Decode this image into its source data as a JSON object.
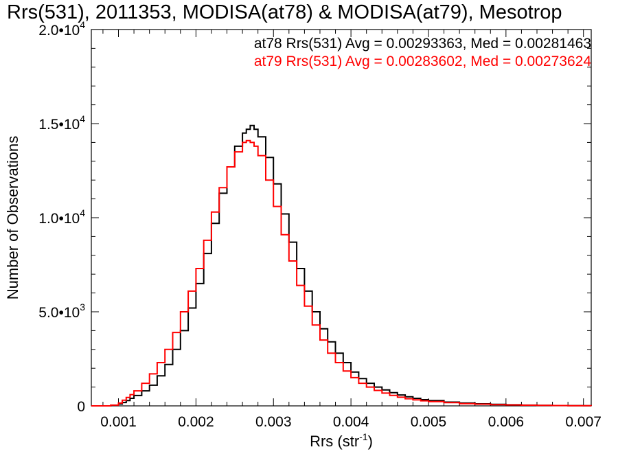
{
  "chart_data": {
    "type": "line",
    "title": "Rrs(531), 2011353, MODISA(at78) & MODISA(at79), Mesotrop",
    "xlabel": "Rrs (str",
    "xlabel_sup": "-1",
    "xlabel_close": ")",
    "ylabel": "Number of Observations",
    "xlim": [
      0.00065,
      0.0071
    ],
    "ylim": [
      0,
      20000
    ],
    "x_ticks": [
      {
        "value": 0.001,
        "label": "0.001"
      },
      {
        "value": 0.002,
        "label": "0.002"
      },
      {
        "value": 0.003,
        "label": "0.003"
      },
      {
        "value": 0.004,
        "label": "0.004"
      },
      {
        "value": 0.005,
        "label": "0.005"
      },
      {
        "value": 0.006,
        "label": "0.006"
      },
      {
        "value": 0.007,
        "label": "0.007"
      }
    ],
    "y_ticks": [
      {
        "value": 0,
        "mant": "0",
        "exp": ""
      },
      {
        "value": 5000,
        "mant": "5.0•1",
        "exp": "3"
      },
      {
        "value": 10000,
        "mant": "1.0•1",
        "exp": "4"
      },
      {
        "value": 15000,
        "mant": "1.5•1",
        "exp": "4"
      },
      {
        "value": 20000,
        "mant": "2.0•1",
        "exp": "4"
      }
    ],
    "series": [
      {
        "name": "at78",
        "color": "#000000",
        "legend": "at78 Rrs(531) Avg = 0.00293363, Med = 0.00281463",
        "x": [
          0.00065,
          0.0008,
          0.0009,
          0.001,
          0.00105,
          0.0011,
          0.00115,
          0.0012,
          0.0013,
          0.0014,
          0.0015,
          0.0016,
          0.0017,
          0.0018,
          0.0019,
          0.002,
          0.0021,
          0.0022,
          0.0023,
          0.0024,
          0.0025,
          0.0026,
          0.00265,
          0.0027,
          0.00275,
          0.0028,
          0.0029,
          0.003,
          0.0031,
          0.0032,
          0.0033,
          0.0034,
          0.0035,
          0.0036,
          0.0037,
          0.0038,
          0.0039,
          0.004,
          0.0041,
          0.0042,
          0.0043,
          0.0044,
          0.0045,
          0.0046,
          0.0047,
          0.0048,
          0.0049,
          0.005,
          0.0052,
          0.0054,
          0.0056,
          0.0058,
          0.006,
          0.0062,
          0.0064,
          0.0066,
          0.0068,
          0.007,
          0.0071
        ],
        "y": [
          0,
          0,
          30,
          100,
          180,
          280,
          400,
          550,
          800,
          1100,
          1600,
          2200,
          3000,
          4000,
          5200,
          6500,
          8100,
          9700,
          11300,
          12700,
          13800,
          14500,
          14700,
          14900,
          14700,
          14300,
          13200,
          11800,
          10200,
          8700,
          7300,
          6100,
          5000,
          4100,
          3400,
          2800,
          2300,
          1800,
          1450,
          1200,
          1000,
          850,
          700,
          580,
          480,
          400,
          330,
          280,
          200,
          150,
          110,
          80,
          60,
          40,
          30,
          20,
          15,
          10,
          5
        ]
      },
      {
        "name": "at79",
        "color": "#ff0000",
        "legend": "at79 Rrs(531) Avg = 0.00283602, Med = 0.00273624",
        "x": [
          0.00065,
          0.0008,
          0.0009,
          0.001,
          0.00105,
          0.0011,
          0.00115,
          0.0012,
          0.0013,
          0.0014,
          0.0015,
          0.0016,
          0.0017,
          0.0018,
          0.0019,
          0.002,
          0.0021,
          0.0022,
          0.0023,
          0.0024,
          0.0025,
          0.0026,
          0.00265,
          0.0027,
          0.00275,
          0.0028,
          0.0029,
          0.003,
          0.0031,
          0.0032,
          0.0033,
          0.0034,
          0.0035,
          0.0036,
          0.0037,
          0.0038,
          0.0039,
          0.004,
          0.0041,
          0.0042,
          0.0043,
          0.0044,
          0.0045,
          0.0046,
          0.0047,
          0.0048,
          0.0049,
          0.005,
          0.0052,
          0.0054,
          0.0056,
          0.0058,
          0.006,
          0.0062,
          0.0064,
          0.0066,
          0.0068,
          0.007,
          0.0071
        ],
        "y": [
          0,
          0,
          40,
          150,
          300,
          450,
          600,
          800,
          1200,
          1700,
          2300,
          3000,
          3900,
          5000,
          6100,
          7300,
          8800,
          10300,
          11600,
          12700,
          13500,
          14000,
          14100,
          14000,
          13800,
          13300,
          12000,
          10600,
          9100,
          7700,
          6400,
          5300,
          4300,
          3500,
          2800,
          2300,
          1850,
          1500,
          1200,
          1000,
          820,
          680,
          560,
          460,
          380,
          320,
          270,
          230,
          170,
          120,
          90,
          65,
          50,
          35,
          25,
          18,
          12,
          8,
          4
        ]
      }
    ]
  }
}
